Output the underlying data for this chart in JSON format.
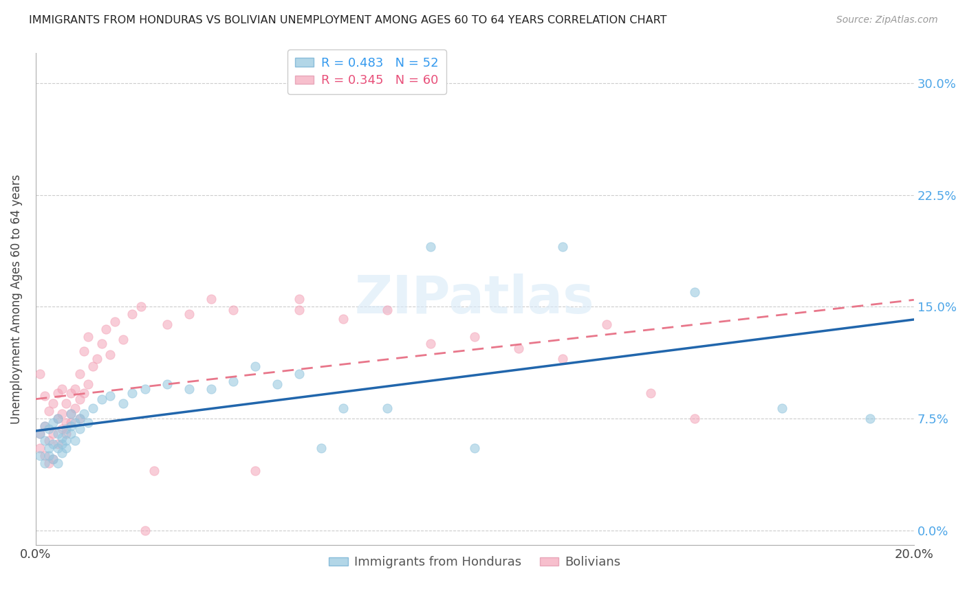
{
  "title": "IMMIGRANTS FROM HONDURAS VS BOLIVIAN UNEMPLOYMENT AMONG AGES 60 TO 64 YEARS CORRELATION CHART",
  "source": "Source: ZipAtlas.com",
  "legend_labels_bottom": [
    "Immigrants from Honduras",
    "Bolivians"
  ],
  "xlim": [
    0.0,
    0.2
  ],
  "ylim": [
    -0.01,
    0.32
  ],
  "ytick_vals": [
    0.0,
    0.075,
    0.15,
    0.225,
    0.3
  ],
  "ytick_labels": [
    "0.0%",
    "7.5%",
    "15.0%",
    "22.5%",
    "30.0%"
  ],
  "xtick_vals": [
    0.0,
    0.05,
    0.1,
    0.15,
    0.2
  ],
  "xtick_labels": [
    "0.0%",
    "",
    "",
    "",
    "20.0%"
  ],
  "blue_color": "#92c5de",
  "pink_color": "#f4a4b8",
  "trendline_blue_color": "#2166ac",
  "trendline_pink_color": "#e8768a",
  "ylabel_label": "Unemployment Among Ages 60 to 64 years",
  "watermark": "ZIPatlas",
  "legend_r1": "R = 0.483   N = 52",
  "legend_r2": "R = 0.345   N = 60",
  "honduras_x": [
    0.001,
    0.001,
    0.002,
    0.002,
    0.002,
    0.003,
    0.003,
    0.003,
    0.004,
    0.004,
    0.004,
    0.005,
    0.005,
    0.005,
    0.005,
    0.006,
    0.006,
    0.006,
    0.007,
    0.007,
    0.007,
    0.008,
    0.008,
    0.008,
    0.009,
    0.009,
    0.01,
    0.01,
    0.011,
    0.012,
    0.013,
    0.015,
    0.017,
    0.02,
    0.022,
    0.025,
    0.03,
    0.035,
    0.04,
    0.045,
    0.05,
    0.055,
    0.06,
    0.065,
    0.07,
    0.08,
    0.09,
    0.1,
    0.12,
    0.15,
    0.17,
    0.19
  ],
  "honduras_y": [
    0.05,
    0.065,
    0.045,
    0.06,
    0.07,
    0.05,
    0.055,
    0.068,
    0.048,
    0.058,
    0.072,
    0.045,
    0.055,
    0.065,
    0.075,
    0.052,
    0.062,
    0.058,
    0.06,
    0.068,
    0.055,
    0.065,
    0.07,
    0.078,
    0.06,
    0.072,
    0.068,
    0.075,
    0.078,
    0.072,
    0.082,
    0.088,
    0.09,
    0.085,
    0.092,
    0.095,
    0.098,
    0.095,
    0.095,
    0.1,
    0.11,
    0.098,
    0.105,
    0.055,
    0.082,
    0.082,
    0.19,
    0.055,
    0.19,
    0.16,
    0.082,
    0.075
  ],
  "bolivian_x": [
    0.001,
    0.001,
    0.001,
    0.002,
    0.002,
    0.002,
    0.003,
    0.003,
    0.003,
    0.004,
    0.004,
    0.004,
    0.005,
    0.005,
    0.005,
    0.006,
    0.006,
    0.006,
    0.007,
    0.007,
    0.007,
    0.008,
    0.008,
    0.008,
    0.009,
    0.009,
    0.01,
    0.01,
    0.01,
    0.011,
    0.011,
    0.012,
    0.012,
    0.013,
    0.014,
    0.015,
    0.016,
    0.017,
    0.018,
    0.02,
    0.022,
    0.024,
    0.025,
    0.027,
    0.03,
    0.035,
    0.04,
    0.045,
    0.05,
    0.06,
    0.07,
    0.08,
    0.09,
    0.1,
    0.11,
    0.12,
    0.13,
    0.14,
    0.15,
    0.06
  ],
  "bolivian_y": [
    0.055,
    0.065,
    0.105,
    0.05,
    0.07,
    0.09,
    0.06,
    0.08,
    0.045,
    0.065,
    0.085,
    0.048,
    0.058,
    0.075,
    0.092,
    0.068,
    0.078,
    0.095,
    0.072,
    0.085,
    0.065,
    0.078,
    0.092,
    0.072,
    0.082,
    0.095,
    0.075,
    0.088,
    0.105,
    0.092,
    0.12,
    0.098,
    0.13,
    0.11,
    0.115,
    0.125,
    0.135,
    0.118,
    0.14,
    0.128,
    0.145,
    0.15,
    0.0,
    0.04,
    0.138,
    0.145,
    0.155,
    0.148,
    0.04,
    0.148,
    0.142,
    0.148,
    0.125,
    0.13,
    0.122,
    0.115,
    0.138,
    0.092,
    0.075,
    0.155
  ],
  "trendline_blue_start": 0.038,
  "trendline_blue_end": 0.15,
  "trendline_pink_start": 0.075,
  "trendline_pink_end_x": 0.185,
  "trendline_pink_end_y": 0.185
}
